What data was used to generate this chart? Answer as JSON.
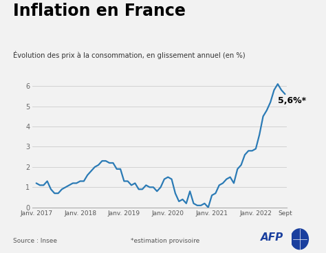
{
  "title": "Inflation en France",
  "subtitle": "Évolution des prix à la consommation, en glissement annuel (en %)",
  "source": "Source : Insee",
  "annotation": "*estimation provisoire",
  "label_end": "5,6%*",
  "background_color": "#f2f2f2",
  "line_color": "#2a7ab5",
  "line_width": 1.6,
  "ylim": [
    0,
    6.5
  ],
  "yticks": [
    0,
    1,
    2,
    3,
    4,
    5,
    6
  ],
  "xtick_labels": [
    "Janv. 2017",
    "Janv. 2018",
    "Janv. 2019",
    "Janv. 2020",
    "Janv. 2021",
    "Janv. 2022",
    "Sept"
  ],
  "xtick_positions": [
    0,
    12,
    24,
    36,
    48,
    60,
    68
  ],
  "afp_color": "#1a3f9e",
  "values": [
    1.2,
    1.1,
    1.1,
    1.3,
    0.9,
    0.7,
    0.7,
    0.9,
    1.0,
    1.1,
    1.2,
    1.2,
    1.3,
    1.3,
    1.6,
    1.8,
    2.0,
    2.1,
    2.3,
    2.3,
    2.2,
    2.2,
    1.9,
    1.9,
    1.3,
    1.3,
    1.1,
    1.2,
    0.9,
    0.9,
    1.1,
    1.0,
    1.0,
    0.8,
    1.0,
    1.4,
    1.5,
    1.4,
    0.7,
    0.3,
    0.4,
    0.2,
    0.8,
    0.2,
    0.1,
    0.1,
    0.2,
    0.0,
    0.6,
    0.7,
    1.1,
    1.2,
    1.4,
    1.5,
    1.2,
    1.9,
    2.1,
    2.6,
    2.8,
    2.8,
    2.9,
    3.6,
    4.5,
    4.8,
    5.2,
    5.8,
    6.1,
    5.8,
    5.6
  ]
}
